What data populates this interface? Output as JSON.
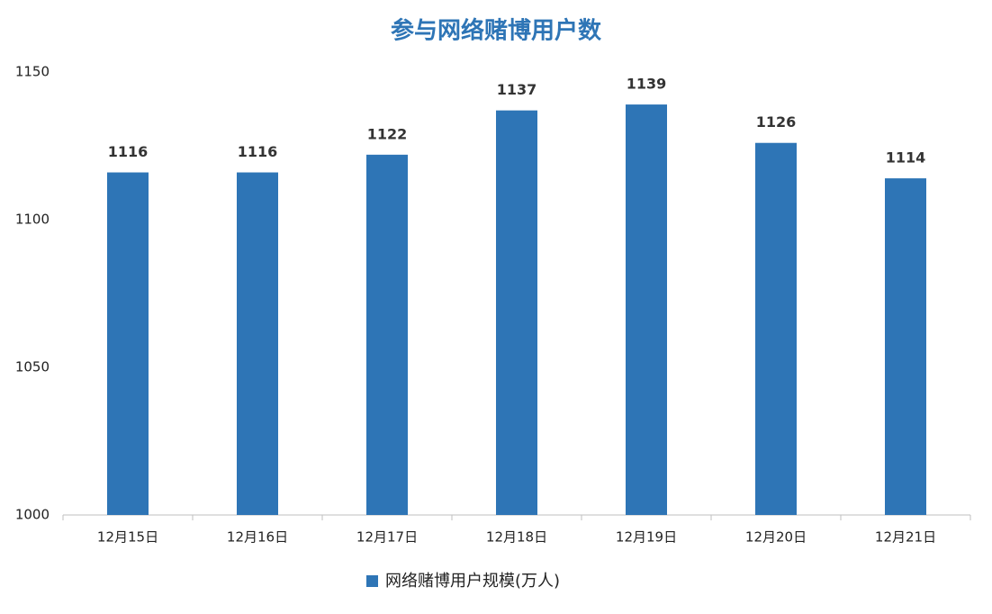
{
  "chart_data": {
    "type": "bar",
    "title": "参与网络赌博用户数",
    "categories": [
      "12月15日",
      "12月16日",
      "12月17日",
      "12月18日",
      "12月19日",
      "12月20日",
      "12月21日"
    ],
    "series": [
      {
        "name": "网络赌博用户规模(万人)",
        "color": "#2e75b6",
        "values": [
          1116,
          1116,
          1122,
          1137,
          1139,
          1126,
          1114
        ]
      }
    ],
    "ylim": [
      1000,
      1150
    ],
    "yticks": [
      1000,
      1050,
      1100,
      1150
    ],
    "grid": false,
    "legend": "bottom"
  }
}
